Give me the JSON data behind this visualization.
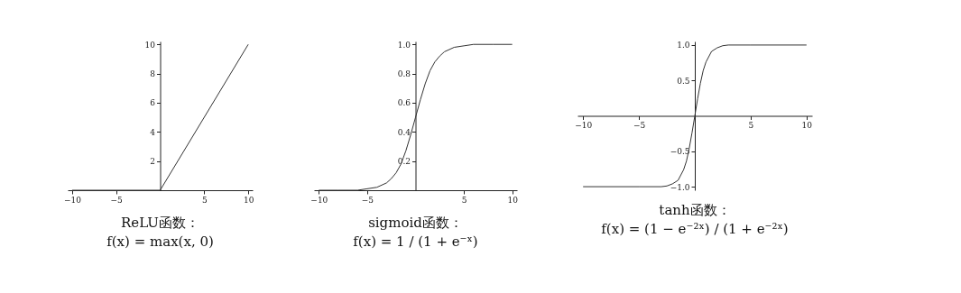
{
  "chart_data": [
    {
      "type": "line",
      "title": "ReLU函数：",
      "subtitle": "f(x) = max(x, 0)",
      "x": [
        -10,
        0,
        10
      ],
      "series": [
        {
          "color": "#333333",
          "values": [
            0,
            0,
            10
          ]
        }
      ],
      "xlim": [
        -10.5,
        10.5
      ],
      "ylim": [
        0,
        10.2
      ],
      "xticks": [
        -10,
        -5,
        5,
        10
      ],
      "yticks": [
        2,
        4,
        6,
        8,
        10
      ],
      "grid": false
    },
    {
      "type": "line",
      "title": "sigmoid函数：",
      "subtitle": "f(x) = 1 / (1 + e⁻ˣ)",
      "x": [
        -10,
        -8,
        -6,
        -5,
        -4,
        -3,
        -2.5,
        -2,
        -1.5,
        -1,
        -0.5,
        0,
        0.5,
        1,
        1.5,
        2,
        2.5,
        3,
        4,
        5,
        6,
        8,
        10
      ],
      "series": [
        {
          "color": "#333333",
          "values": [
            0,
            0,
            0,
            0.01,
            0.02,
            0.05,
            0.08,
            0.12,
            0.18,
            0.27,
            0.38,
            0.5,
            0.62,
            0.73,
            0.82,
            0.88,
            0.92,
            0.95,
            0.98,
            0.99,
            1,
            1,
            1
          ]
        }
      ],
      "xlim": [
        -10.5,
        10.5
      ],
      "ylim": [
        0,
        1.02
      ],
      "xticks": [
        -10,
        -5,
        5,
        10
      ],
      "yticks": [
        0.2,
        0.4,
        0.6,
        0.8,
        {
          "value": 1,
          "label": "1.0"
        }
      ],
      "grid": false
    },
    {
      "type": "line",
      "title": "tanh函数：",
      "subtitle": "f(x) = (1 − e⁻²ˣ) / (1 + e⁻²ˣ)",
      "x": [
        -10,
        -5,
        -3,
        -2.5,
        -2,
        -1.5,
        -1,
        -0.75,
        -0.5,
        -0.25,
        0,
        0.25,
        0.5,
        0.75,
        1,
        1.5,
        2,
        2.5,
        3,
        5,
        10
      ],
      "series": [
        {
          "color": "#333333",
          "values": [
            -1,
            -1,
            -1,
            -0.99,
            -0.96,
            -0.91,
            -0.76,
            -0.64,
            -0.46,
            -0.24,
            0,
            0.24,
            0.46,
            0.64,
            0.76,
            0.91,
            0.96,
            0.99,
            1,
            1,
            1
          ]
        }
      ],
      "xlim": [
        -10.5,
        10.5
      ],
      "ylim": [
        -1.05,
        1.05
      ],
      "xticks": [
        -10,
        -5,
        5,
        10
      ],
      "yticks": [
        {
          "value": -1,
          "label": "−1.0"
        },
        {
          "value": -0.5,
          "label": "−0.5"
        },
        0.5,
        {
          "value": 1,
          "label": "1.0"
        }
      ],
      "grid": false
    }
  ]
}
